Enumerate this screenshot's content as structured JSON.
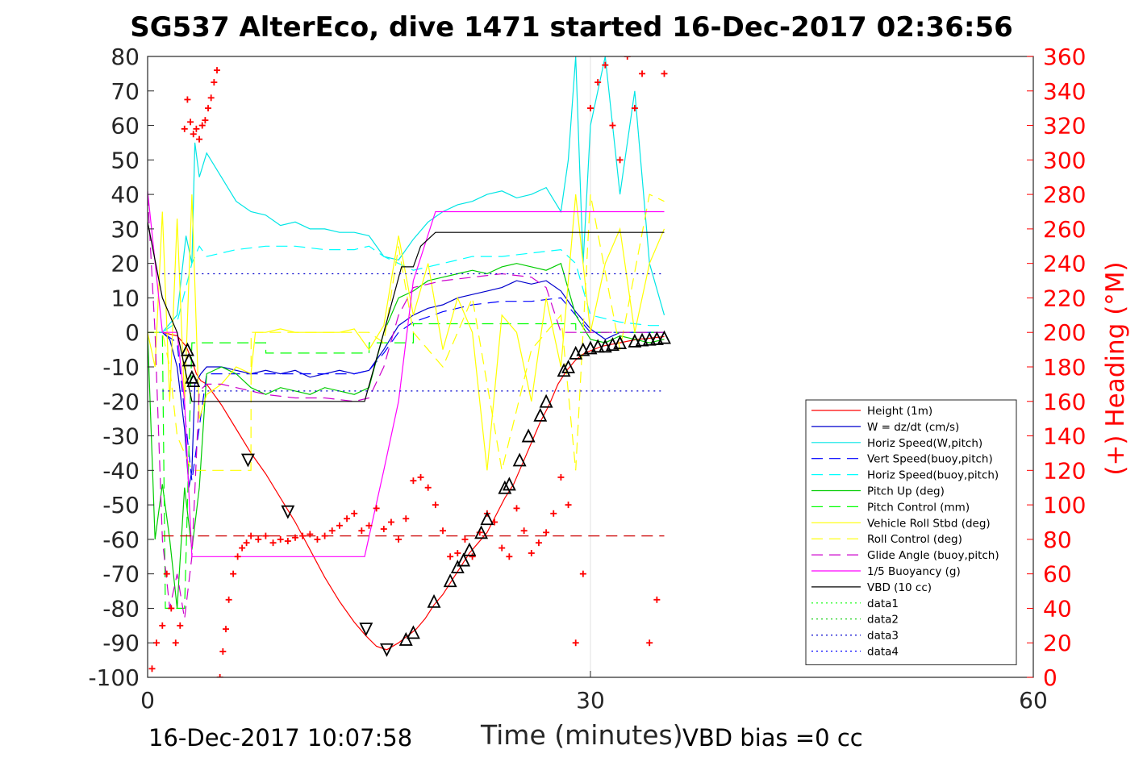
{
  "title": "SG537 AlterEco, dive 1471 started 16-Dec-2017 02:36:56",
  "footer": {
    "timestamp": "16-Dec-2017 10:07:58",
    "vbd_bias": "VBD bias =0 cc"
  },
  "colors": {
    "height": "#ff0000",
    "w": "#0000cd",
    "horiz_speed": "#00e5e5",
    "vert_speed_buoy": "#0000ff",
    "horiz_speed_buoy": "#00ffff",
    "pitch_up": "#00cc00",
    "pitch_control": "#00ff00",
    "vehicle_roll": "#ffff00",
    "roll_control": "#ffff00",
    "glide_angle": "#cc00cc",
    "buoyancy": "#ff00ff",
    "vbd": "#000000",
    "heading": "#ff0000"
  },
  "chart_data": {
    "type": "line",
    "title": "SG537 AlterEco, dive 1471 started 16-Dec-2017 02:36:56",
    "xlabel": "Time (minutes)",
    "ylabel": "",
    "y2label": "(+) Heading (°M)",
    "xlim": [
      0,
      60
    ],
    "ylim": [
      -100,
      80
    ],
    "y2lim": [
      0,
      360
    ],
    "xticks": [
      0,
      30,
      60
    ],
    "yticks": [
      -100,
      -90,
      -80,
      -70,
      -60,
      -50,
      -40,
      -30,
      -20,
      -10,
      0,
      10,
      20,
      30,
      40,
      50,
      60,
      70,
      80
    ],
    "y2ticks": [
      0,
      20,
      40,
      60,
      80,
      100,
      120,
      140,
      160,
      180,
      200,
      220,
      240,
      260,
      280,
      300,
      320,
      340,
      360
    ],
    "grid": "x only at 30",
    "legend_position": "bottom-right",
    "legend": [
      {
        "label": "Height (1m)",
        "style": "solid",
        "color": "#ff0000"
      },
      {
        "label": "W = dz/dt (cm/s)",
        "style": "solid",
        "color": "#0000cd"
      },
      {
        "label": "Horiz Speed(W,pitch)",
        "style": "solid",
        "color": "#00e5e5"
      },
      {
        "label": "Vert Speed(buoy,pitch)",
        "style": "dashed",
        "color": "#0000ff"
      },
      {
        "label": "Horiz Speed(buoy,pitch)",
        "style": "dashed",
        "color": "#00ffff"
      },
      {
        "label": "Pitch Up (deg)",
        "style": "solid",
        "color": "#00cc00"
      },
      {
        "label": "Pitch Control (mm)",
        "style": "dashed",
        "color": "#00ff00"
      },
      {
        "label": "Vehicle Roll Stbd (deg)",
        "style": "solid",
        "color": "#ffff00"
      },
      {
        "label": "Roll Control (deg)",
        "style": "dashed",
        "color": "#ffff00"
      },
      {
        "label": "Glide Angle (buoy,pitch)",
        "style": "dashed",
        "color": "#cc00cc"
      },
      {
        "label": "1/5 Buoyancy (g)",
        "style": "solid",
        "color": "#ff00ff"
      },
      {
        "label": "VBD (10 cc)",
        "style": "solid",
        "color": "#000000"
      },
      {
        "label": "data1",
        "style": "dotted",
        "color": "#00ff00"
      },
      {
        "label": "data2",
        "style": "dotted",
        "color": "#00cc00"
      },
      {
        "label": "data3",
        "style": "dotted",
        "color": "#0000cd"
      },
      {
        "label": "data4",
        "style": "dotted",
        "color": "#0000ff"
      }
    ],
    "series": [
      {
        "name": "Height (1m)",
        "axis": "left",
        "x": [
          0,
          1,
          2,
          2.6,
          3,
          3.3,
          3.6,
          4,
          5,
          6,
          7,
          8,
          9,
          10,
          11,
          12,
          13,
          14,
          14.8,
          15.5,
          16.2,
          17,
          17.6,
          18.2,
          18.8,
          19.4,
          20,
          20.6,
          21.2,
          21.8,
          22.4,
          23,
          23.6,
          24.2,
          24.8,
          25.4,
          26,
          26.6,
          27.2,
          27.8,
          28.4,
          29,
          29.6,
          30.2,
          30.8,
          31.4,
          32,
          32.6,
          33.2,
          33.8,
          34.4,
          35
        ],
        "y": [
          0,
          0,
          -1,
          -4,
          -8,
          -12,
          -14,
          -15,
          -21,
          -28,
          -35,
          -41,
          -48,
          -55,
          -63,
          -71,
          -78,
          -84,
          -88,
          -91,
          -92,
          -90,
          -88,
          -86,
          -83,
          -79,
          -76,
          -72,
          -68,
          -64,
          -61,
          -58,
          -53,
          -48,
          -44,
          -38,
          -32,
          -26,
          -21,
          -15,
          -11,
          -8,
          -6,
          -5,
          -4,
          -3.5,
          -3,
          -2.5,
          -2,
          -1.8,
          -1.5,
          -1.2
        ]
      },
      {
        "name": "W = dz/dt (cm/s)",
        "axis": "left",
        "x": [
          0,
          1,
          1.5,
          2,
          2.5,
          2.8,
          3,
          3.2,
          3.6,
          4,
          5,
          6,
          7,
          8,
          9,
          10,
          11,
          12,
          13,
          14,
          15,
          16,
          17,
          18,
          19,
          20,
          21,
          22,
          23,
          24,
          25,
          26,
          27,
          28,
          29,
          30,
          31,
          32,
          33,
          34,
          35
        ],
        "y": [
          0,
          0,
          -2,
          -10,
          -28,
          -45,
          -40,
          -15,
          -12,
          -10,
          -10,
          -11,
          -12,
          -11,
          -12,
          -11,
          -13,
          -12,
          -11,
          -12,
          -11,
          -5,
          2,
          5,
          7,
          8,
          10,
          11,
          12,
          13,
          15,
          14,
          15,
          12,
          6,
          1,
          -2,
          0,
          0,
          0,
          0
        ]
      },
      {
        "name": "Horiz Speed(W,pitch)",
        "axis": "left",
        "x": [
          0,
          1,
          2,
          2.6,
          3,
          3.2,
          3.5,
          4,
          5,
          6,
          7,
          8,
          9,
          10,
          11,
          12,
          13,
          14,
          15,
          16,
          17,
          18,
          19,
          20,
          21,
          22,
          23,
          24,
          25,
          26,
          27,
          28,
          28.5,
          29,
          29.5,
          30,
          31,
          32,
          33,
          34,
          35
        ],
        "y": [
          0,
          0,
          5,
          28,
          20,
          55,
          45,
          52,
          45,
          38,
          35,
          34,
          31,
          32,
          30,
          30,
          29,
          29,
          28,
          22,
          21,
          27,
          32,
          35,
          37,
          38,
          40,
          41,
          39,
          40,
          42,
          35,
          50,
          80,
          20,
          60,
          80,
          40,
          70,
          20,
          5
        ]
      },
      {
        "name": "Vert Speed(buoy,pitch)",
        "axis": "left",
        "x": [
          0,
          1,
          2,
          3,
          4,
          6,
          8,
          10,
          12,
          14,
          15,
          16,
          17,
          18,
          20,
          22,
          24,
          26,
          28,
          29,
          30,
          32,
          34,
          35
        ],
        "y": [
          0,
          0,
          -3,
          -43,
          -12,
          -12,
          -12,
          -12,
          -12,
          -12,
          -11,
          -6,
          0,
          3,
          6,
          8,
          9,
          9,
          10,
          5,
          0,
          0,
          0,
          0
        ]
      },
      {
        "name": "Horiz Speed(buoy,pitch)",
        "axis": "left",
        "x": [
          0,
          1,
          2,
          3,
          3.5,
          4,
          6,
          8,
          10,
          12,
          14,
          15,
          16,
          17,
          18,
          20,
          22,
          24,
          26,
          28,
          29,
          30,
          32,
          34,
          35
        ],
        "y": [
          0,
          0,
          3,
          20,
          25,
          22,
          24,
          25,
          25,
          24,
          24,
          25,
          22,
          20,
          18,
          20,
          22,
          22,
          23,
          24,
          20,
          5,
          3,
          2,
          2
        ]
      },
      {
        "name": "Pitch Up (deg)",
        "axis": "left",
        "x": [
          0,
          0.5,
          1,
          1.5,
          2,
          2.5,
          3,
          3.5,
          4,
          5,
          6,
          7,
          8,
          9,
          10,
          11,
          12,
          13,
          14,
          15,
          16,
          17,
          18,
          19,
          20,
          21,
          22,
          23,
          24,
          25,
          26,
          27,
          28,
          29,
          30,
          31,
          32,
          33,
          34,
          35
        ],
        "y": [
          0,
          -60,
          -44,
          -60,
          -80,
          -45,
          -63,
          -45,
          -12,
          -10,
          -12,
          -16,
          -18,
          -16,
          -17,
          -18,
          -16,
          -17,
          -18,
          -16,
          0,
          10,
          12,
          15,
          16,
          17,
          18,
          17,
          19,
          20,
          19,
          18,
          20,
          5,
          -2,
          -3,
          -1,
          -2,
          -3,
          -2
        ]
      },
      {
        "name": "Pitch Control (mm)",
        "axis": "left",
        "x": [
          0,
          1,
          1.2,
          2,
          2.5,
          3,
          3.5,
          4,
          8,
          8.01,
          15,
          15.01,
          18,
          18.01,
          29,
          29.01,
          35
        ],
        "y": [
          0,
          0,
          -80,
          -80,
          -80,
          -3,
          -3,
          -3,
          -3,
          -6,
          -6,
          -3,
          -3,
          2.5,
          2.5,
          0,
          0
        ]
      },
      {
        "name": "Vehicle Roll Stbd (deg)",
        "axis": "left",
        "x": [
          0,
          0.5,
          1,
          1.5,
          2,
          2.5,
          3,
          3.5,
          4,
          5,
          6,
          7,
          7.3,
          8,
          9,
          10,
          11,
          12,
          13,
          14,
          15,
          16,
          17,
          18,
          19,
          20,
          21,
          22,
          23,
          24,
          25,
          26,
          27,
          28,
          29,
          30,
          31,
          32,
          33,
          34,
          35
        ],
        "y": [
          0,
          -10,
          35,
          -20,
          33,
          -20,
          40,
          -25,
          -18,
          -15,
          -10,
          -12,
          0,
          0,
          1,
          0,
          0,
          0,
          0,
          1,
          -5,
          2,
          28,
          5,
          20,
          -5,
          10,
          0,
          -40,
          5,
          0,
          -20,
          10,
          -10,
          40,
          0,
          20,
          30,
          0,
          20,
          30
        ]
      },
      {
        "name": "Roll Control (deg)",
        "axis": "left",
        "x": [
          0,
          1,
          1.5,
          2,
          3,
          4,
          6,
          7,
          7.01,
          8,
          15,
          16,
          17,
          18,
          20,
          22,
          24,
          26,
          28,
          29,
          30,
          32,
          34,
          35
        ],
        "y": [
          0,
          0,
          -10,
          -30,
          -40,
          -40,
          -40,
          -40,
          0,
          0,
          0,
          -3,
          25,
          0,
          -10,
          10,
          -40,
          -5,
          5,
          -40,
          40,
          -5,
          40,
          38
        ]
      },
      {
        "name": "Glide Angle (buoy,pitch)",
        "axis": "left",
        "x": [
          0,
          0.5,
          1,
          1.5,
          2,
          2.5,
          3,
          3.5,
          4,
          5,
          6,
          7,
          8,
          10,
          12,
          14,
          15,
          16,
          17,
          18,
          20,
          22,
          24,
          26,
          27,
          28,
          29,
          30,
          32,
          34,
          35
        ],
        "y": [
          40,
          0,
          -60,
          -80,
          -70,
          -83,
          -65,
          -17,
          -15,
          -15,
          -16,
          -17,
          -18,
          -19,
          -19,
          -20,
          -19,
          -10,
          5,
          13,
          15,
          16,
          17,
          16,
          13,
          0,
          0,
          0,
          0,
          0,
          0
        ]
      },
      {
        "name": "1/5 Buoyancy (g)",
        "axis": "left",
        "x": [
          0,
          1,
          2,
          2.5,
          3,
          4,
          8,
          10,
          12,
          14,
          14.7,
          16,
          17,
          18,
          19.5,
          22,
          25,
          28,
          30,
          32,
          35
        ],
        "y": [
          41,
          0,
          0,
          -20,
          -65,
          -65,
          -65,
          -65,
          -65,
          -65,
          -65,
          -40,
          -20,
          15,
          35,
          35,
          35,
          35,
          35,
          35,
          35
        ]
      },
      {
        "name": "VBD (10 cc)",
        "axis": "left",
        "x": [
          0,
          1,
          2,
          2.6,
          3,
          8,
          14.7,
          16,
          17.2,
          18,
          18.5,
          19.5,
          25,
          30,
          35
        ],
        "y": [
          32,
          10,
          0,
          -12,
          -20,
          -20,
          -20,
          0,
          19,
          19,
          25,
          29,
          29,
          29,
          29
        ]
      },
      {
        "name": "data1",
        "axis": "left",
        "x": [
          1,
          35
        ],
        "y": [
          17,
          17
        ]
      },
      {
        "name": "data2",
        "axis": "left",
        "x": [
          1,
          35
        ],
        "y": [
          -17,
          -17
        ]
      },
      {
        "name": "Heading",
        "axis": "right",
        "type": "scatter",
        "marker": "+",
        "x": [
          0.3,
          0.6,
          1,
          1.3,
          1.6,
          1.9,
          2.2,
          2.5,
          2.7,
          2.9,
          3.1,
          3.3,
          3.5,
          3.7,
          3.9,
          4.1,
          4.3,
          4.5,
          4.7,
          4.9,
          5.1,
          5.3,
          5.5,
          5.8,
          6.1,
          6.4,
          6.7,
          7,
          7.5,
          8,
          8.5,
          9,
          9.5,
          10,
          10.5,
          11,
          11.5,
          12,
          12.5,
          13,
          13.5,
          14,
          14.5,
          15,
          15.5,
          16,
          16.5,
          17,
          17.5,
          18,
          18.5,
          19,
          19.5,
          20,
          20.5,
          21,
          21.5,
          22,
          22.5,
          23,
          23.5,
          24,
          24.5,
          25,
          25.5,
          26,
          26.5,
          27,
          27.5,
          28,
          28.5,
          29,
          29.5,
          30,
          30.5,
          31,
          31.5,
          32,
          32.5,
          33,
          33.5,
          34,
          34.5,
          35
        ],
        "y": [
          5,
          20,
          30,
          60,
          40,
          20,
          30,
          318,
          335,
          322,
          315,
          318,
          312,
          320,
          323,
          330,
          336,
          345,
          352,
          0,
          15,
          28,
          45,
          60,
          70,
          75,
          78,
          82,
          80,
          82,
          78,
          80,
          79,
          81,
          82,
          83,
          80,
          82,
          85,
          88,
          92,
          95,
          85,
          88,
          98,
          86,
          90,
          80,
          92,
          114,
          116,
          110,
          100,
          85,
          70,
          72,
          80,
          70,
          84,
          95,
          90,
          75,
          70,
          98,
          85,
          72,
          78,
          84,
          95,
          116,
          100,
          20,
          60,
          330,
          345,
          355,
          320,
          300,
          360,
          330,
          350,
          20,
          45,
          350
        ]
      }
    ],
    "markers": {
      "name": "Dive profile triangles",
      "axis": "left",
      "x": [
        2.7,
        2.8,
        3.0,
        3.1,
        6.8,
        9.5,
        14.8,
        16.2,
        17.5,
        18.0,
        19.4,
        20.5,
        21.0,
        21.4,
        21.8,
        22.6,
        23.0,
        24.2,
        24.5,
        25.2,
        25.8,
        26.6,
        27.0,
        28.2,
        28.5,
        29.0,
        29.5,
        30.0,
        30.5,
        31.0,
        31.5,
        32.0,
        33.0,
        33.5,
        34.0,
        34.5,
        35.0
      ],
      "y": [
        -5,
        -8,
        -13,
        -14,
        -37,
        -52,
        -86,
        -92,
        -89,
        -87,
        -78,
        -72,
        -68,
        -66,
        -63,
        -58,
        -54,
        -45,
        -44,
        -37,
        -30,
        -24,
        -20,
        -11,
        -10,
        -6,
        -5,
        -4.5,
        -4,
        -4,
        -3.5,
        -3,
        -2.5,
        -2.2,
        -2,
        -1.8,
        -1.5
      ]
    }
  }
}
